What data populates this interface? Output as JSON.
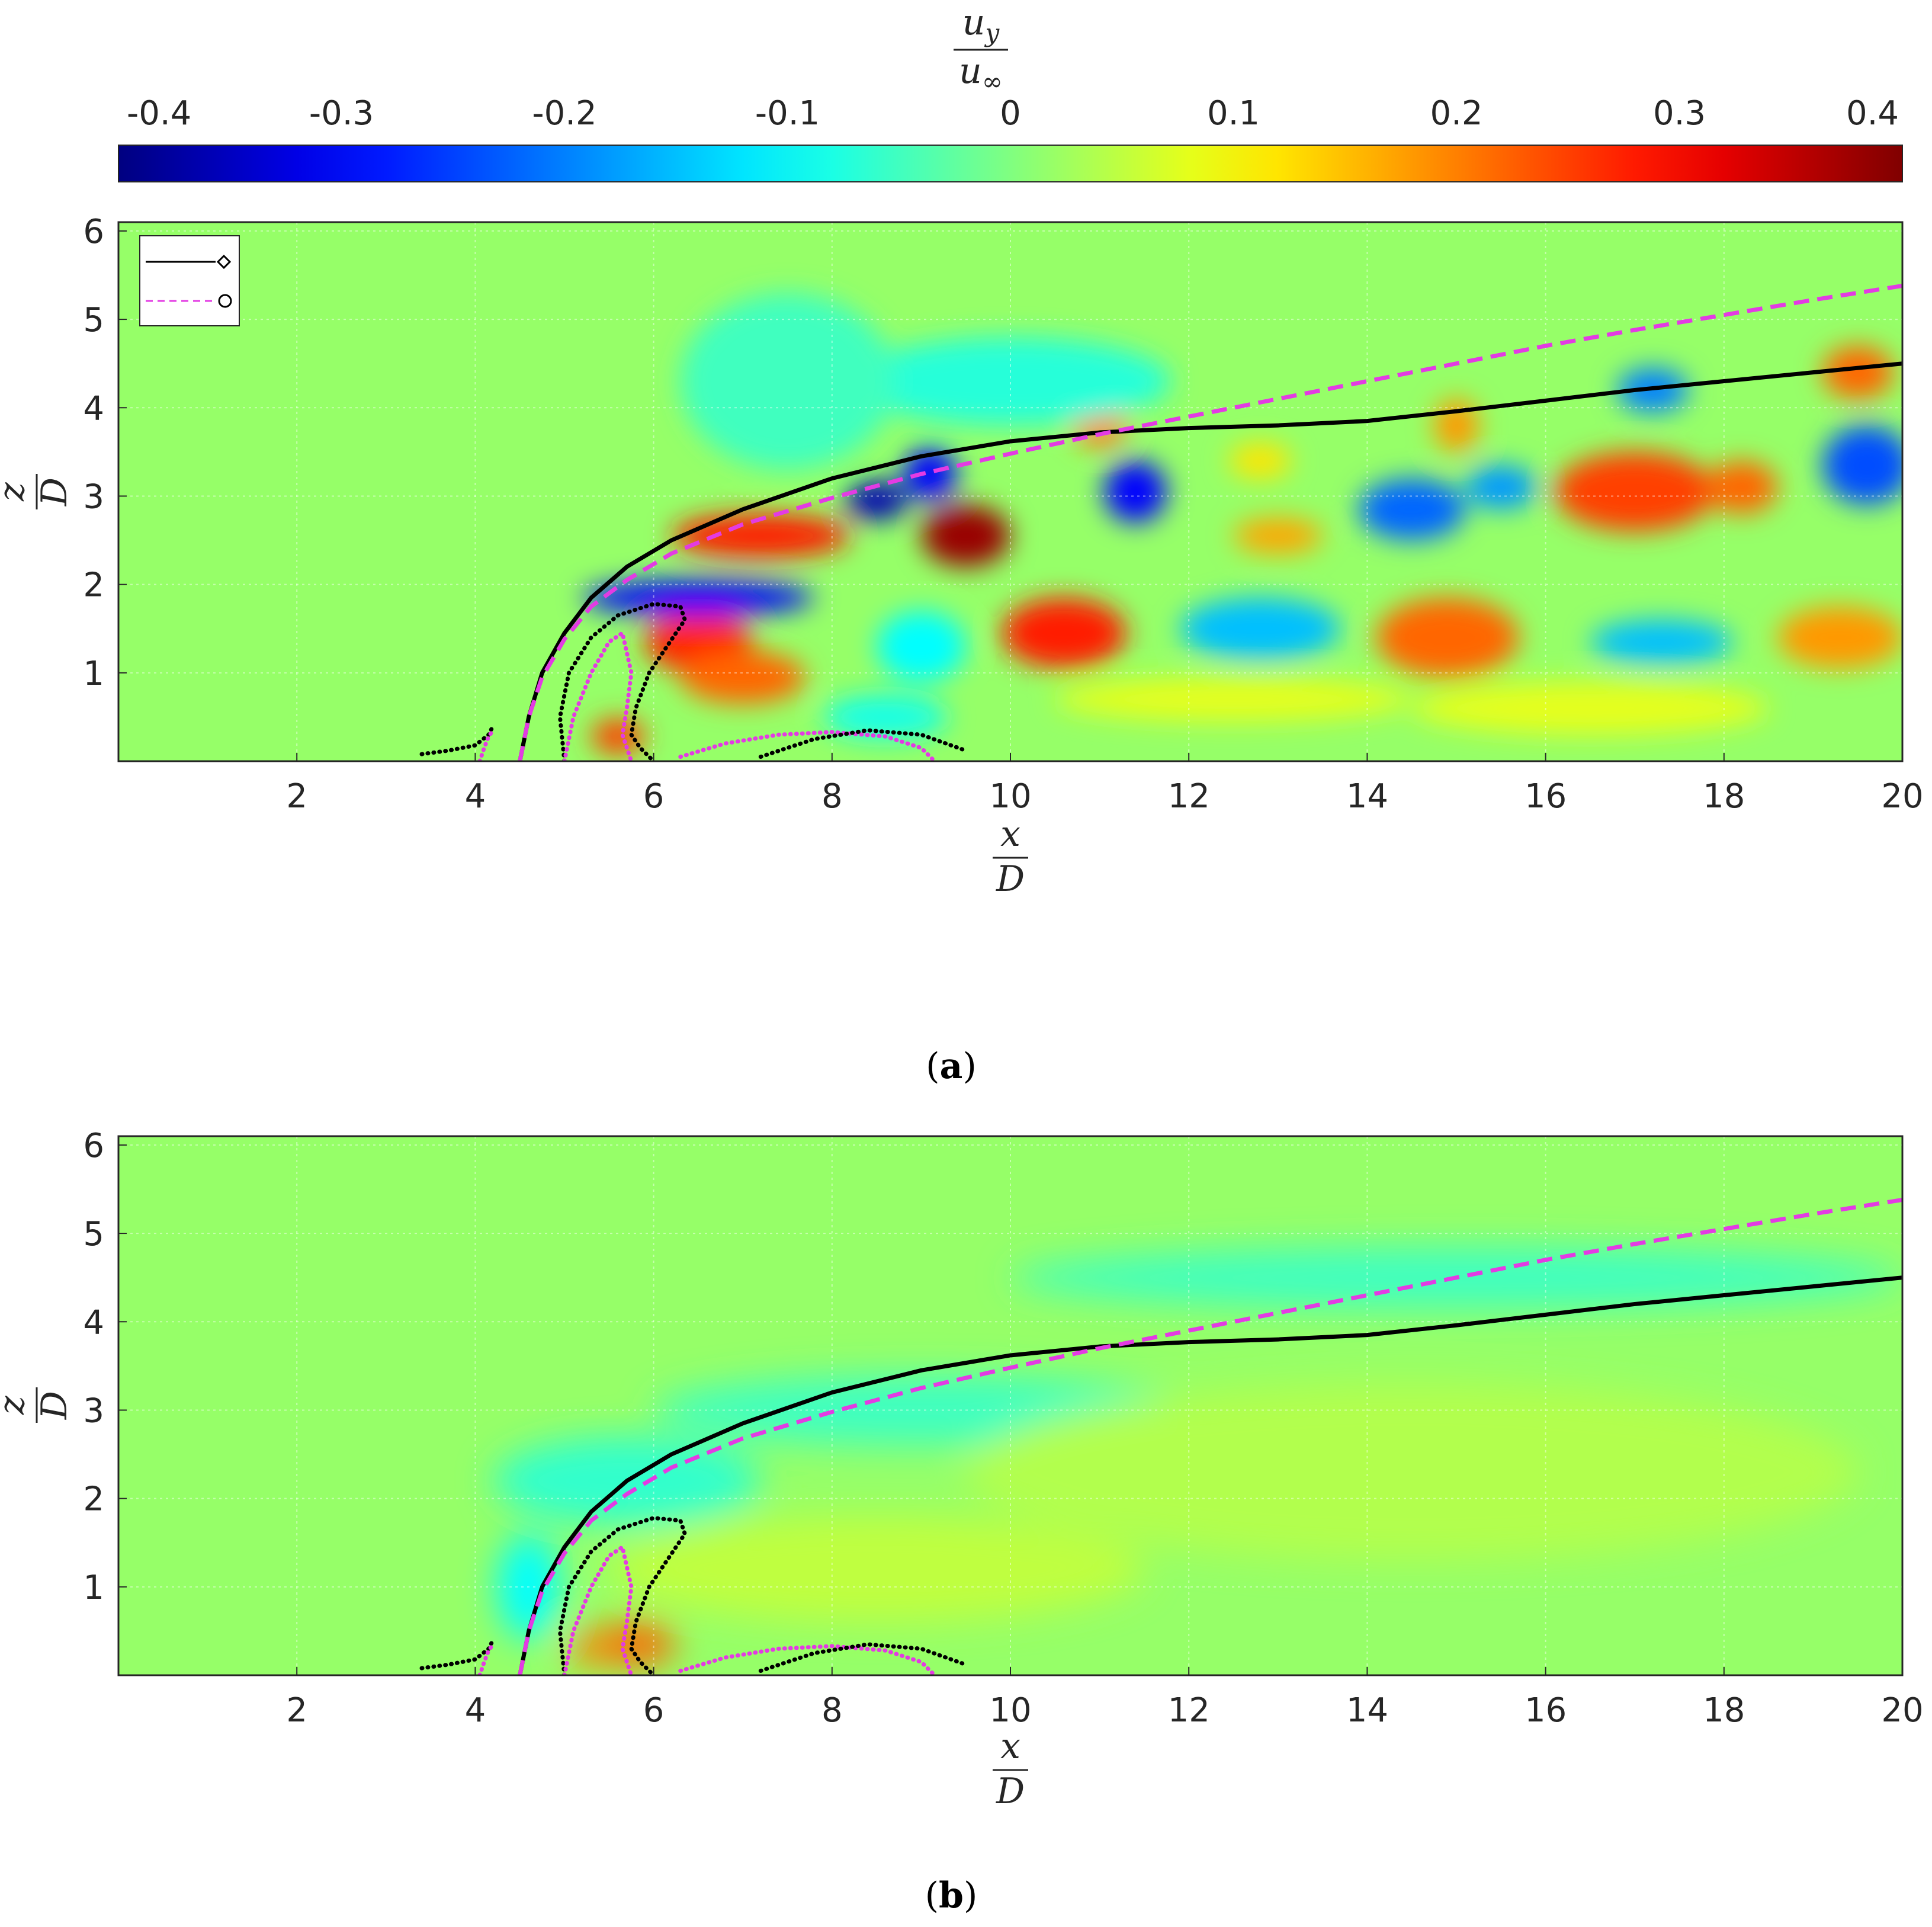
{
  "colorbar": {
    "label_numerator": "u",
    "label_numerator_sub": "y",
    "label_denominator": "u",
    "label_denominator_sub": "∞",
    "range": [
      -0.4,
      0.4
    ],
    "ticks": [
      "-0.4",
      "-0.3",
      "-0.2",
      "-0.1",
      "0",
      "0.1",
      "0.2",
      "0.3",
      "0.4"
    ],
    "colormap": "jet"
  },
  "captions": {
    "a": {
      "open": "(",
      "letter": "a",
      "close": ")"
    },
    "b": {
      "open": "(",
      "letter": "b",
      "close": ")"
    }
  },
  "chart_data": [
    {
      "type": "heatmap",
      "panel": "a",
      "xlabel_numerator": "x",
      "xlabel_denominator": "D",
      "ylabel_numerator": "z",
      "ylabel_denominator": "D",
      "xlim": [
        0,
        20
      ],
      "ylim": [
        0,
        6.1
      ],
      "xticks": [
        "2",
        "4",
        "6",
        "8",
        "10",
        "12",
        "14",
        "16",
        "18",
        "20"
      ],
      "yticks": [
        "1",
        "2",
        "3",
        "4",
        "5",
        "6"
      ],
      "grid": true,
      "legend_placement": "top-left",
      "legend": [
        {
          "style": "solid",
          "color": "#000000",
          "marker": "diamond"
        },
        {
          "style": "dashed",
          "color": "#e33be3",
          "marker": "circle"
        }
      ],
      "field_blobs": [
        {
          "x": 8.5,
          "z": 2.95,
          "value": -0.36,
          "rx": 0.35,
          "rz": 0.22
        },
        {
          "x": 9.1,
          "z": 3.25,
          "value": -0.3,
          "rx": 0.3,
          "rz": 0.3
        },
        {
          "x": 9.5,
          "z": 2.55,
          "value": 0.38,
          "rx": 0.5,
          "rz": 0.35
        },
        {
          "x": 7.2,
          "z": 2.55,
          "value": 0.28,
          "rx": 1.0,
          "rz": 0.25
        },
        {
          "x": 6.5,
          "z": 1.35,
          "value": 0.27,
          "rx": 0.6,
          "rz": 0.35
        },
        {
          "x": 7.0,
          "z": 0.95,
          "value": 0.22,
          "rx": 0.7,
          "rz": 0.3
        },
        {
          "x": 5.6,
          "z": 0.28,
          "value": 0.25,
          "rx": 0.3,
          "rz": 0.2
        },
        {
          "x": 6.5,
          "z": 1.85,
          "value": -0.3,
          "rx": 1.3,
          "rz": 0.2
        },
        {
          "x": 10.6,
          "z": 1.45,
          "value": 0.28,
          "rx": 0.7,
          "rz": 0.4
        },
        {
          "x": 11.0,
          "z": 3.8,
          "value": 0.2,
          "rx": 0.3,
          "rz": 0.25
        },
        {
          "x": 11.4,
          "z": 3.05,
          "value": -0.3,
          "rx": 0.35,
          "rz": 0.35
        },
        {
          "x": 13.0,
          "z": 2.55,
          "value": 0.17,
          "rx": 0.5,
          "rz": 0.2
        },
        {
          "x": 14.5,
          "z": 2.85,
          "value": -0.22,
          "rx": 0.6,
          "rz": 0.35
        },
        {
          "x": 15.5,
          "z": 3.1,
          "value": -0.18,
          "rx": 0.4,
          "rz": 0.25
        },
        {
          "x": 15.0,
          "z": 3.8,
          "value": 0.18,
          "rx": 0.25,
          "rz": 0.3
        },
        {
          "x": 14.9,
          "z": 1.4,
          "value": 0.22,
          "rx": 0.8,
          "rz": 0.45
        },
        {
          "x": 12.8,
          "z": 1.5,
          "value": -0.15,
          "rx": 0.9,
          "rz": 0.35
        },
        {
          "x": 17.0,
          "z": 3.05,
          "value": 0.25,
          "rx": 0.9,
          "rz": 0.45
        },
        {
          "x": 18.2,
          "z": 3.1,
          "value": 0.22,
          "rx": 0.4,
          "rz": 0.3
        },
        {
          "x": 17.2,
          "z": 4.2,
          "value": -0.2,
          "rx": 0.4,
          "rz": 0.25
        },
        {
          "x": 19.6,
          "z": 3.35,
          "value": -0.24,
          "rx": 0.5,
          "rz": 0.45
        },
        {
          "x": 19.5,
          "z": 4.4,
          "value": 0.22,
          "rx": 0.4,
          "rz": 0.3
        },
        {
          "x": 17.3,
          "z": 1.35,
          "value": -0.15,
          "rx": 0.8,
          "rz": 0.25
        },
        {
          "x": 19.3,
          "z": 1.4,
          "value": 0.18,
          "rx": 0.7,
          "rz": 0.35
        },
        {
          "x": 12.8,
          "z": 3.4,
          "value": 0.12,
          "rx": 0.35,
          "rz": 0.2
        },
        {
          "x": 9.0,
          "z": 1.3,
          "value": -0.1,
          "rx": 0.5,
          "rz": 0.4
        },
        {
          "x": 8.6,
          "z": 0.5,
          "value": -0.08,
          "rx": 0.7,
          "rz": 0.25
        },
        {
          "x": 12.5,
          "z": 0.7,
          "value": 0.08,
          "rx": 2.0,
          "rz": 0.25
        },
        {
          "x": 16.5,
          "z": 0.6,
          "value": 0.08,
          "rx": 2.0,
          "rz": 0.3
        },
        {
          "x": 10.0,
          "z": 4.3,
          "value": -0.07,
          "rx": 1.8,
          "rz": 0.5
        },
        {
          "x": 7.5,
          "z": 4.3,
          "value": -0.05,
          "rx": 1.2,
          "rz": 1.0
        }
      ],
      "series": [
        {
          "style": "solid",
          "color": "#000000",
          "x": [
            4.5,
            4.6,
            4.75,
            5.0,
            5.3,
            5.7,
            6.2,
            7.0,
            8.0,
            9.0,
            10.0,
            11.0,
            12.0,
            13.0,
            14.0,
            15.0,
            16.0,
            17.0,
            18.0,
            19.0,
            20.0
          ],
          "z": [
            0.0,
            0.5,
            1.0,
            1.45,
            1.85,
            2.2,
            2.5,
            2.85,
            3.2,
            3.45,
            3.62,
            3.72,
            3.77,
            3.8,
            3.85,
            3.96,
            4.08,
            4.2,
            4.3,
            4.4,
            4.5
          ]
        },
        {
          "style": "dashed",
          "color": "#e33be3",
          "x": [
            4.5,
            4.6,
            4.75,
            5.0,
            5.3,
            5.7,
            6.2,
            7.0,
            8.0,
            9.0,
            10.0,
            11.0,
            12.0,
            13.0,
            14.0,
            15.0,
            16.0,
            17.0,
            18.0,
            19.0,
            20.0
          ],
          "z": [
            0.0,
            0.5,
            0.95,
            1.38,
            1.75,
            2.05,
            2.35,
            2.68,
            2.98,
            3.25,
            3.48,
            3.7,
            3.9,
            4.1,
            4.3,
            4.5,
            4.7,
            4.88,
            5.05,
            5.22,
            5.38
          ]
        }
      ],
      "dotted_curves": [
        {
          "color": "#000000",
          "x": [
            3.4,
            3.7,
            4.0,
            4.15,
            4.2
          ],
          "z": [
            0.08,
            0.12,
            0.18,
            0.3,
            0.4
          ]
        },
        {
          "color": "#e33be3",
          "x": [
            4.05,
            4.1,
            4.15,
            4.2
          ],
          "z": [
            0.0,
            0.15,
            0.28,
            0.35
          ]
        },
        {
          "color": "#000000",
          "x": [
            5.0,
            4.95,
            5.05,
            5.3,
            5.6,
            6.0,
            6.3,
            6.35,
            6.15,
            5.95,
            5.8,
            5.75,
            5.85,
            6.0
          ],
          "z": [
            0.0,
            0.5,
            1.0,
            1.4,
            1.65,
            1.78,
            1.75,
            1.6,
            1.3,
            1.0,
            0.6,
            0.3,
            0.15,
            0.0
          ]
        },
        {
          "color": "#e33be3",
          "x": [
            5.0,
            5.1,
            5.3,
            5.5,
            5.65,
            5.75,
            5.7,
            5.65,
            5.75
          ],
          "z": [
            0.0,
            0.5,
            1.0,
            1.35,
            1.45,
            1.0,
            0.6,
            0.3,
            0.0
          ]
        },
        {
          "color": "#e33be3",
          "x": [
            6.3,
            6.8,
            7.4,
            8.0,
            8.6,
            9.0,
            9.15
          ],
          "z": [
            0.05,
            0.2,
            0.3,
            0.33,
            0.28,
            0.15,
            0.0
          ]
        },
        {
          "color": "#000000",
          "x": [
            7.2,
            7.8,
            8.4,
            9.0,
            9.5
          ],
          "z": [
            0.05,
            0.25,
            0.35,
            0.3,
            0.12
          ]
        }
      ]
    },
    {
      "type": "heatmap",
      "panel": "b",
      "xlabel_numerator": "x",
      "xlabel_denominator": "D",
      "ylabel_numerator": "z",
      "ylabel_denominator": "D",
      "xlim": [
        0,
        20
      ],
      "ylim": [
        0,
        6.1
      ],
      "xticks": [
        "2",
        "4",
        "6",
        "8",
        "10",
        "12",
        "14",
        "16",
        "18",
        "20"
      ],
      "yticks": [
        "1",
        "2",
        "3",
        "4",
        "5",
        "6"
      ],
      "grid": true,
      "field_blobs": [
        {
          "x": 5.8,
          "z": 0.35,
          "value": 0.22,
          "rx": 0.45,
          "rz": 0.25
        },
        {
          "x": 5.3,
          "z": 0.3,
          "value": 0.2,
          "rx": 0.25,
          "rz": 0.2
        },
        {
          "x": 4.6,
          "z": 1.0,
          "value": -0.1,
          "rx": 0.35,
          "rz": 0.6
        },
        {
          "x": 5.7,
          "z": 2.2,
          "value": -0.06,
          "rx": 1.5,
          "rz": 0.5
        },
        {
          "x": 9.0,
          "z": 3.0,
          "value": -0.05,
          "rx": 3.0,
          "rz": 0.4
        },
        {
          "x": 15.0,
          "z": 4.5,
          "value": -0.05,
          "rx": 5.0,
          "rz": 0.35
        },
        {
          "x": 8.5,
          "z": 1.2,
          "value": 0.05,
          "rx": 3.0,
          "rz": 0.6
        },
        {
          "x": 14.5,
          "z": 2.3,
          "value": 0.04,
          "rx": 5.0,
          "rz": 1.0
        }
      ],
      "series": [
        {
          "style": "solid",
          "color": "#000000",
          "x": [
            4.5,
            4.6,
            4.75,
            5.0,
            5.3,
            5.7,
            6.2,
            7.0,
            8.0,
            9.0,
            10.0,
            11.0,
            12.0,
            13.0,
            14.0,
            15.0,
            16.0,
            17.0,
            18.0,
            19.0,
            20.0
          ],
          "z": [
            0.0,
            0.5,
            1.0,
            1.45,
            1.85,
            2.2,
            2.5,
            2.85,
            3.2,
            3.45,
            3.62,
            3.72,
            3.77,
            3.8,
            3.85,
            3.96,
            4.08,
            4.2,
            4.3,
            4.4,
            4.5
          ]
        },
        {
          "style": "dashed",
          "color": "#e33be3",
          "x": [
            4.5,
            4.6,
            4.75,
            5.0,
            5.3,
            5.7,
            6.2,
            7.0,
            8.0,
            9.0,
            10.0,
            11.0,
            12.0,
            13.0,
            14.0,
            15.0,
            16.0,
            17.0,
            18.0,
            19.0,
            20.0
          ],
          "z": [
            0.0,
            0.5,
            0.95,
            1.38,
            1.75,
            2.05,
            2.35,
            2.68,
            2.98,
            3.25,
            3.48,
            3.7,
            3.9,
            4.1,
            4.3,
            4.5,
            4.7,
            4.88,
            5.05,
            5.22,
            5.38
          ]
        }
      ],
      "dotted_curves": [
        {
          "color": "#000000",
          "x": [
            3.4,
            3.7,
            4.0,
            4.15,
            4.2
          ],
          "z": [
            0.08,
            0.12,
            0.18,
            0.3,
            0.4
          ]
        },
        {
          "color": "#e33be3",
          "x": [
            4.05,
            4.1,
            4.15,
            4.2
          ],
          "z": [
            0.0,
            0.15,
            0.28,
            0.35
          ]
        },
        {
          "color": "#000000",
          "x": [
            5.0,
            4.95,
            5.05,
            5.3,
            5.6,
            6.0,
            6.3,
            6.35,
            6.15,
            5.95,
            5.8,
            5.75,
            5.85,
            6.0
          ],
          "z": [
            0.0,
            0.5,
            1.0,
            1.4,
            1.65,
            1.78,
            1.75,
            1.6,
            1.3,
            1.0,
            0.6,
            0.3,
            0.15,
            0.0
          ]
        },
        {
          "color": "#e33be3",
          "x": [
            5.0,
            5.1,
            5.3,
            5.5,
            5.65,
            5.75,
            5.7,
            5.65,
            5.75
          ],
          "z": [
            0.0,
            0.5,
            1.0,
            1.35,
            1.45,
            1.0,
            0.6,
            0.3,
            0.0
          ]
        },
        {
          "color": "#e33be3",
          "x": [
            6.3,
            6.8,
            7.4,
            8.0,
            8.6,
            9.0,
            9.15
          ],
          "z": [
            0.05,
            0.2,
            0.3,
            0.33,
            0.28,
            0.15,
            0.0
          ]
        },
        {
          "color": "#000000",
          "x": [
            7.2,
            7.8,
            8.4,
            9.0,
            9.5
          ],
          "z": [
            0.05,
            0.25,
            0.35,
            0.3,
            0.12
          ]
        }
      ]
    }
  ]
}
